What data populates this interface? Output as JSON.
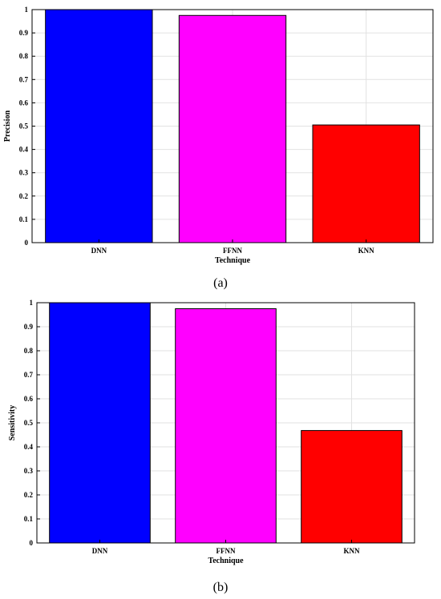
{
  "chart_data": [
    {
      "type": "bar",
      "panel_label": "(a)",
      "categories": [
        "DNN",
        "FFNN",
        "KNN"
      ],
      "values": [
        1.0,
        0.975,
        0.505
      ],
      "colors": [
        "#0000ff",
        "#ff00ff",
        "#ff0000"
      ],
      "xlabel": "Technique",
      "ylabel": "Precision",
      "ylim": [
        0,
        1
      ],
      "yticks": [
        0,
        0.1,
        0.2,
        0.3,
        0.4,
        0.5,
        0.6,
        0.7,
        0.8,
        0.9,
        1
      ],
      "grid": true
    },
    {
      "type": "bar",
      "panel_label": "(b)",
      "categories": [
        "DNN",
        "FFNN",
        "KNN"
      ],
      "values": [
        1.0,
        0.975,
        0.468
      ],
      "colors": [
        "#0000ff",
        "#ff00ff",
        "#ff0000"
      ],
      "xlabel": "Technique",
      "ylabel": "Sensitivity",
      "ylim": [
        0,
        1
      ],
      "yticks": [
        0,
        0.1,
        0.2,
        0.3,
        0.4,
        0.5,
        0.6,
        0.7,
        0.8,
        0.9,
        1
      ],
      "grid": true
    }
  ]
}
